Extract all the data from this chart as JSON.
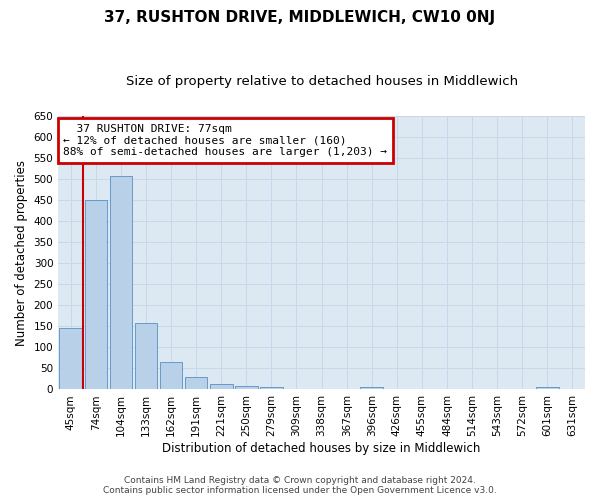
{
  "title": "37, RUSHTON DRIVE, MIDDLEWICH, CW10 0NJ",
  "subtitle": "Size of property relative to detached houses in Middlewich",
  "xlabel": "Distribution of detached houses by size in Middlewich",
  "ylabel": "Number of detached properties",
  "footer_line1": "Contains HM Land Registry data © Crown copyright and database right 2024.",
  "footer_line2": "Contains public sector information licensed under the Open Government Licence v3.0.",
  "bar_labels": [
    "45sqm",
    "74sqm",
    "104sqm",
    "133sqm",
    "162sqm",
    "191sqm",
    "221sqm",
    "250sqm",
    "279sqm",
    "309sqm",
    "338sqm",
    "367sqm",
    "396sqm",
    "426sqm",
    "455sqm",
    "484sqm",
    "514sqm",
    "543sqm",
    "572sqm",
    "601sqm",
    "631sqm"
  ],
  "bar_heights": [
    147,
    450,
    507,
    158,
    65,
    30,
    14,
    9,
    5,
    0,
    0,
    0,
    6,
    0,
    0,
    0,
    0,
    0,
    0,
    6,
    0
  ],
  "bar_color": "#b8d0e8",
  "bar_edge_color": "#6699cc",
  "annotation_text": "  37 RUSHTON DRIVE: 77sqm\n← 12% of detached houses are smaller (160)\n88% of semi-detached houses are larger (1,203) →",
  "annotation_box_color": "#ffffff",
  "annotation_box_edge_color": "#cc0000",
  "vline_color": "#cc0000",
  "ylim": [
    0,
    650
  ],
  "yticks": [
    0,
    50,
    100,
    150,
    200,
    250,
    300,
    350,
    400,
    450,
    500,
    550,
    600,
    650
  ],
  "grid_color": "#c8d8ea",
  "bg_color": "#dce8f2",
  "title_fontsize": 11,
  "subtitle_fontsize": 9.5,
  "axis_label_fontsize": 8.5,
  "tick_fontsize": 7.5,
  "annotation_fontsize": 8,
  "footer_fontsize": 6.5
}
